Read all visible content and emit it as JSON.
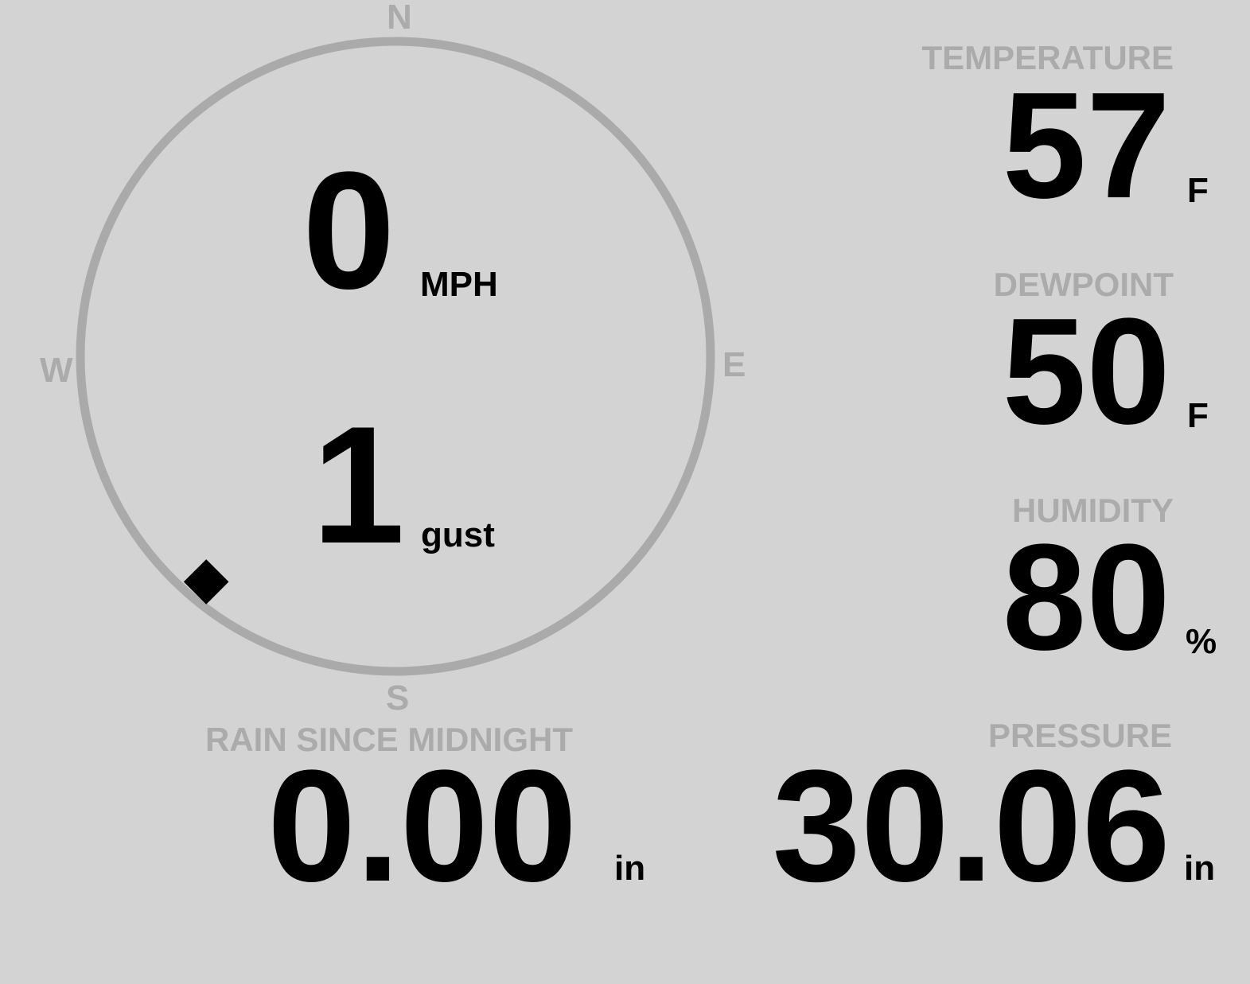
{
  "wind": {
    "speed": "0",
    "speed_unit": "MPH",
    "gust": "1",
    "gust_unit": "gust",
    "direction_degrees": 220,
    "compass": {
      "n": "N",
      "e": "E",
      "s": "S",
      "w": "W"
    }
  },
  "temperature": {
    "label": "TEMPERATURE",
    "value": "57",
    "unit": "F"
  },
  "dewpoint": {
    "label": "DEWPOINT",
    "value": "50",
    "unit": "F"
  },
  "humidity": {
    "label": "HUMIDITY",
    "value": "80",
    "unit": "%"
  },
  "rain": {
    "label": "RAIN SINCE MIDNIGHT",
    "value": "0.00",
    "unit": "in"
  },
  "pressure": {
    "label": "PRESSURE",
    "value": "30.06",
    "unit": "in"
  },
  "colors": {
    "background": "#d3d3d3",
    "label": "#ababab",
    "ring": "#aaaaaa",
    "value": "#000000"
  }
}
